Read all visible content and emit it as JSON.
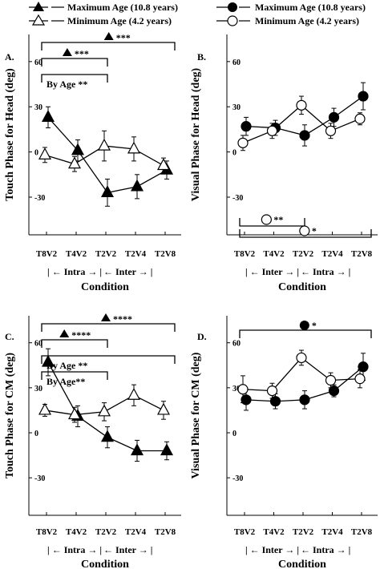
{
  "legend": {
    "left": {
      "max_label": "Maximum Age (10.8 years)",
      "min_label": "Minimum  Age (4.2 years)",
      "max_marker": "filled-triangle",
      "min_marker": "open-triangle"
    },
    "right": {
      "max_label": "Maximum Age (10.8 years)",
      "min_label": "Minimum  Age (4.2 years)",
      "max_marker": "filled-circle",
      "min_marker": "open-circle"
    }
  },
  "chart_data": [
    {
      "type": "line",
      "panel": "A.",
      "ylabel": "Touch Phase for Head (deg)",
      "xlabel": "Condition",
      "categories": [
        "T8V2",
        "T4V2",
        "T2V2",
        "T2V4",
        "T2V8"
      ],
      "groups": [
        "| ← Intra → |",
        "← Inter → |"
      ],
      "ylim": [
        -55,
        78
      ],
      "yticks": [
        -30,
        0,
        30,
        60
      ],
      "marker": "triangle",
      "series": [
        {
          "name": "Maximum Age (10.8 years)",
          "filled": true,
          "values": [
            23,
            1,
            -27,
            -23,
            -12
          ],
          "err": [
            7,
            7,
            9,
            8,
            6
          ]
        },
        {
          "name": "Minimum  Age (4.2 years)",
          "filled": false,
          "values": [
            -2,
            -8,
            4,
            2,
            -9
          ],
          "err": [
            5,
            5,
            10,
            8,
            5
          ]
        }
      ],
      "annotations": [
        {
          "text": "★★★",
          "display": "***",
          "level": 1,
          "from": 0,
          "to": 4,
          "glyph": "filled-triangle",
          "label_at": 2.1
        },
        {
          "text": "***",
          "level": 2,
          "from": 0,
          "to": 2,
          "glyph": "filled-triangle",
          "label_at": 0.7
        },
        {
          "text": "By Age **",
          "level": 3,
          "from": 0,
          "to": 2,
          "glyph": ""
        }
      ]
    },
    {
      "type": "line",
      "panel": "B.",
      "ylabel": "Visual Phase for Head (deg)",
      "xlabel": "Condition",
      "categories": [
        "T8V2",
        "T4V2",
        "T2V2",
        "T2V4",
        "T2V8"
      ],
      "groups": [
        "| ← Inter → |",
        "← Intra → |"
      ],
      "ylim": [
        -55,
        78
      ],
      "yticks": [
        -30,
        0,
        30,
        60
      ],
      "marker": "circle",
      "series": [
        {
          "name": "Maximum Age (10.8 years)",
          "filled": true,
          "values": [
            17,
            16,
            11,
            23,
            37
          ],
          "err": [
            6,
            5,
            7,
            6,
            9
          ]
        },
        {
          "name": "Minimum  Age (4.2 years)",
          "filled": false,
          "values": [
            6,
            14,
            31,
            14,
            22
          ],
          "err": [
            5,
            5,
            6,
            5,
            4
          ]
        }
      ],
      "annotations": [
        {
          "text": "**",
          "level": 1,
          "from": 0,
          "to": 2,
          "glyph": "open-circle",
          "label_at": 0.75
        },
        {
          "text": "*",
          "level": 2,
          "from": 0,
          "to": 4,
          "glyph": "open-circle",
          "label_at": 2.05
        }
      ]
    },
    {
      "type": "line",
      "panel": "C.",
      "ylabel": "Touch Phase for CM (deg)",
      "xlabel": "Condition",
      "categories": [
        "T8V2",
        "T4V2",
        "T2V2",
        "T2V4",
        "T2V8"
      ],
      "groups": [
        "| ← Intra → |",
        "← Inter → |"
      ],
      "ylim": [
        -55,
        78
      ],
      "yticks": [
        -30,
        0,
        30,
        60
      ],
      "marker": "triangle",
      "series": [
        {
          "name": "Maximum Age (10.8 years)",
          "filled": true,
          "values": [
            47,
            11,
            -3,
            -12,
            -12
          ],
          "err": [
            9,
            7,
            7,
            7,
            6
          ]
        },
        {
          "name": "Minimum  Age (4.2 years)",
          "filled": false,
          "values": [
            15,
            12,
            14,
            25,
            15
          ],
          "err": [
            4,
            5,
            6,
            7,
            6
          ]
        }
      ],
      "annotations": [
        {
          "text": "****",
          "level": 1,
          "from": 0,
          "to": 4,
          "glyph": "filled-triangle",
          "label_at": 2.0
        },
        {
          "text": "****",
          "level": 2,
          "from": 0,
          "to": 2,
          "glyph": "filled-triangle",
          "label_at": 0.6
        },
        {
          "text": "By Age **",
          "level": 3,
          "from": 0,
          "to": 4,
          "glyph": ""
        },
        {
          "text": "By Age**",
          "level": 4,
          "from": 0,
          "to": 2,
          "glyph": ""
        }
      ]
    },
    {
      "type": "line",
      "panel": "D.",
      "ylabel": "Visual Phase for CM (deg)",
      "xlabel": "Condition",
      "categories": [
        "T8V2",
        "T4V2",
        "T2V2",
        "T2V4",
        "T2V8"
      ],
      "groups": [
        "| ← Inter → |",
        "← Intra → |"
      ],
      "ylim": [
        -55,
        78
      ],
      "yticks": [
        -30,
        0,
        30,
        60
      ],
      "marker": "circle",
      "series": [
        {
          "name": "Maximum Age (10.8 years)",
          "filled": true,
          "values": [
            22,
            21,
            22,
            28,
            44
          ],
          "err": [
            7,
            5,
            6,
            4,
            9
          ]
        },
        {
          "name": "Minimum  Age (4.2 years)",
          "filled": false,
          "values": [
            29,
            28,
            50,
            35,
            36
          ],
          "err": [
            9,
            5,
            5,
            5,
            6
          ]
        }
      ],
      "annotations": [
        {
          "text": "*",
          "level": 1,
          "from": 0,
          "to": 4,
          "glyph": "filled-circle",
          "label_at": 2.05
        }
      ]
    }
  ]
}
